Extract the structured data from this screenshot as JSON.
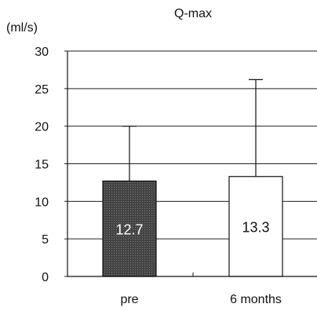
{
  "chart_data": {
    "type": "bar",
    "title": "Q-max",
    "ylabel": "(ml/s)",
    "xlabel": "",
    "categories": [
      "pre",
      "6 months"
    ],
    "series": [
      {
        "values": [
          12.7,
          13.3
        ],
        "error_upper": [
          20.0,
          26.2
        ],
        "fill_colors": [
          "#444444",
          "#ffffff"
        ],
        "label_colors": [
          "#ffffff",
          "#111111"
        ]
      }
    ],
    "data_labels": [
      "12.7",
      "13.3"
    ],
    "ylim": [
      0,
      30
    ],
    "yticks": [
      0,
      5,
      10,
      15,
      20,
      25,
      30
    ],
    "ytick_labels": [
      "0",
      "5",
      "10",
      "15",
      "20",
      "25",
      "30"
    ],
    "grid": "horizontal",
    "legend": "none"
  }
}
